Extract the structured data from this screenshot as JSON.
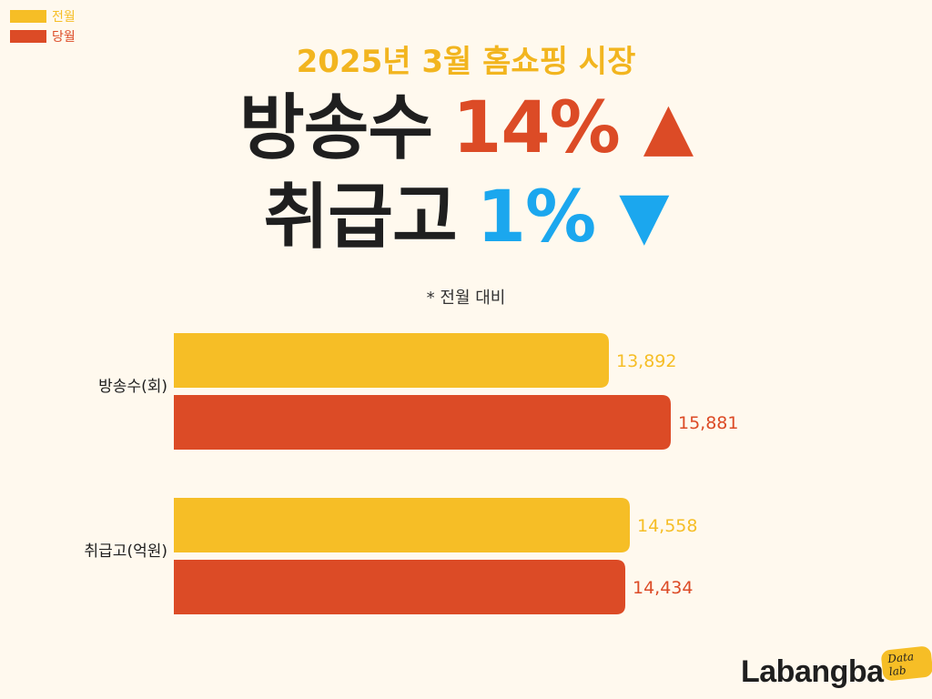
{
  "legend": [
    {
      "label": "전월",
      "color": "#F6BE26"
    },
    {
      "label": "당월",
      "color": "#DC4B26"
    }
  ],
  "headline": "2025년 3월 홈쇼핑 시장",
  "summary": [
    {
      "label": "방송수",
      "pct": "14%",
      "arrow": "▲",
      "direction": "up",
      "color": "#DC4B26"
    },
    {
      "label": "취급고",
      "pct": "1%",
      "arrow": "▼",
      "direction": "down",
      "color": "#1BA7EE"
    }
  ],
  "footnote": "* 전월 대비",
  "chart_data": {
    "type": "bar",
    "orientation": "horizontal",
    "categories": [
      "방송수(회)",
      "취급고(억원)"
    ],
    "series": [
      {
        "name": "전월",
        "color": "#F6BE26",
        "values": [
          13892,
          14558
        ],
        "labels": [
          "13,892",
          "14,558"
        ]
      },
      {
        "name": "당월",
        "color": "#DC4B26",
        "values": [
          15881,
          14434
        ],
        "labels": [
          "15,881",
          "14,434"
        ]
      }
    ],
    "xlim": [
      0,
      15881
    ],
    "grid": false,
    "legend": "top-left"
  },
  "logo": {
    "name": "Labangba",
    "badge": "Data lab"
  }
}
